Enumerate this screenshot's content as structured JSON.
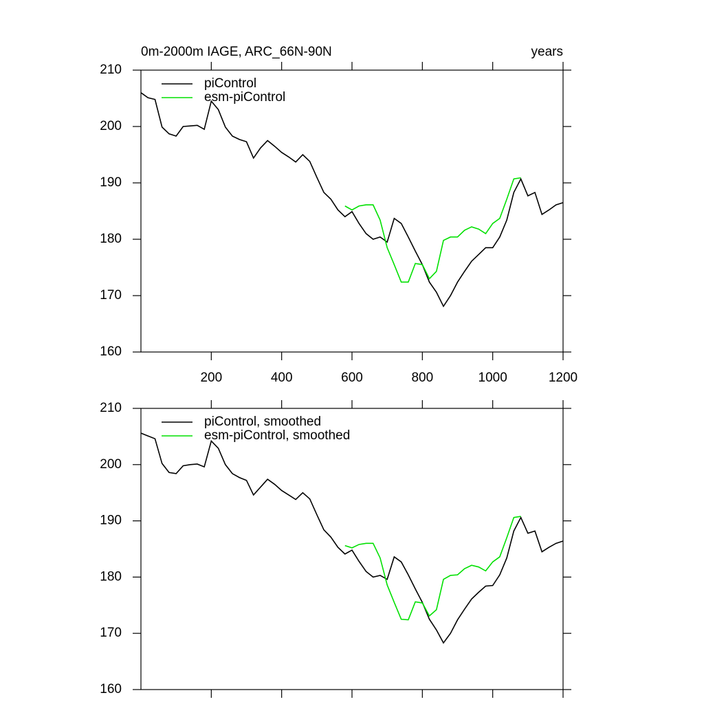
{
  "chart_data": [
    {
      "type": "line",
      "title": "0m-2000m IAGE, ARC_66N-90N",
      "units_label": "years",
      "x": [
        0,
        20,
        40,
        60,
        80,
        100,
        120,
        140,
        160,
        180,
        200,
        220,
        240,
        260,
        280,
        300,
        320,
        340,
        360,
        380,
        400,
        420,
        440,
        460,
        480,
        500,
        520,
        540,
        560,
        580,
        600,
        620,
        640,
        660,
        680,
        700,
        720,
        740,
        760,
        780,
        800,
        820,
        840,
        860,
        880,
        900,
        920,
        940,
        960,
        980,
        1000,
        1020,
        1040,
        1060,
        1080,
        1100,
        1120,
        1140,
        1160,
        1180,
        1200
      ],
      "series": [
        {
          "name": "piControl",
          "color": "#000000",
          "values": [
            206,
            205.1,
            204.8,
            199.9,
            198.7,
            198.3,
            200,
            200.1,
            200.2,
            199.5,
            204.5,
            203,
            199.9,
            198.3,
            197.7,
            197.3,
            194.4,
            196.2,
            197.5,
            196.5,
            195.4,
            194.6,
            193.7,
            195,
            193.8,
            191,
            188.3,
            187.1,
            185.2,
            184,
            184.9,
            182.8,
            181,
            180,
            180.4,
            179.5,
            183.7,
            182.8,
            180.4,
            177.9,
            175.5,
            172.4,
            170.6,
            168.1,
            170,
            172.4,
            174.3,
            176.1,
            177.3,
            178.5,
            178.5,
            180.4,
            183.4,
            188.3,
            190.7,
            187.7,
            188.3,
            184.4,
            185.2,
            186.1,
            186.5
          ]
        },
        {
          "name": "esm-piControl",
          "color": "#00e000",
          "values": [
            null,
            null,
            null,
            null,
            null,
            null,
            null,
            null,
            null,
            null,
            null,
            null,
            null,
            null,
            null,
            null,
            null,
            null,
            null,
            null,
            null,
            null,
            null,
            null,
            null,
            null,
            null,
            null,
            null,
            185.9,
            185.2,
            185.9,
            186.1,
            186.1,
            183.4,
            178.5,
            175.5,
            172.4,
            172.4,
            175.7,
            175.5,
            173,
            174.3,
            179.8,
            180.4,
            180.4,
            181.6,
            182.2,
            181.8,
            181,
            182.8,
            183.7,
            187.1,
            190.7,
            190.9,
            null,
            null,
            null,
            null,
            null,
            null
          ]
        }
      ],
      "xlim": [
        0,
        1200
      ],
      "xticks": [
        200,
        400,
        600,
        800,
        1000,
        1200
      ],
      "xtick_labels": true,
      "ylim": [
        160,
        210
      ],
      "yticks": [
        160,
        170,
        180,
        190,
        200,
        210
      ]
    },
    {
      "type": "line",
      "x": [
        0,
        20,
        40,
        60,
        80,
        100,
        120,
        140,
        160,
        180,
        200,
        220,
        240,
        260,
        280,
        300,
        320,
        340,
        360,
        380,
        400,
        420,
        440,
        460,
        480,
        500,
        520,
        540,
        560,
        580,
        600,
        620,
        640,
        660,
        680,
        700,
        720,
        740,
        760,
        780,
        800,
        820,
        840,
        860,
        880,
        900,
        920,
        940,
        960,
        980,
        1000,
        1020,
        1040,
        1060,
        1080,
        1100,
        1120,
        1140,
        1160,
        1180,
        1200
      ],
      "series": [
        {
          "name": "piControl, smoothed",
          "color": "#000000",
          "values": [
            205.6,
            205.1,
            204.6,
            200.2,
            198.6,
            198.4,
            199.8,
            200,
            200.1,
            199.6,
            204.2,
            202.9,
            200,
            198.4,
            197.7,
            197.2,
            194.6,
            196,
            197.4,
            196.5,
            195.4,
            194.6,
            193.8,
            195,
            193.9,
            191.1,
            188.4,
            187.1,
            185.3,
            184.1,
            184.8,
            182.8,
            181,
            180,
            180.3,
            179.6,
            183.6,
            182.7,
            180.4,
            177.9,
            175.5,
            172.5,
            170.6,
            168.3,
            170,
            172.4,
            174.3,
            176.1,
            177.3,
            178.4,
            178.5,
            180.4,
            183.4,
            188.2,
            190.6,
            187.8,
            188.2,
            184.5,
            185.3,
            186,
            186.4
          ]
        },
        {
          "name": "esm-piControl, smoothed",
          "color": "#00e000",
          "values": [
            null,
            null,
            null,
            null,
            null,
            null,
            null,
            null,
            null,
            null,
            null,
            null,
            null,
            null,
            null,
            null,
            null,
            null,
            null,
            null,
            null,
            null,
            null,
            null,
            null,
            null,
            null,
            null,
            null,
            185.6,
            185.2,
            185.8,
            186,
            186,
            183.4,
            178.6,
            175.5,
            172.5,
            172.4,
            175.6,
            175.4,
            173.1,
            174.2,
            179.6,
            180.3,
            180.4,
            181.5,
            182.1,
            181.8,
            181.1,
            182.7,
            183.6,
            187,
            190.6,
            190.8,
            null,
            null,
            null,
            null,
            null,
            null
          ]
        }
      ],
      "xlim": [
        0,
        1200
      ],
      "xticks": [
        200,
        400,
        600,
        800,
        1000,
        1200
      ],
      "xtick_labels": false,
      "ylim": [
        160,
        210
      ],
      "yticks": [
        160,
        170,
        180,
        190,
        200,
        210
      ]
    }
  ]
}
